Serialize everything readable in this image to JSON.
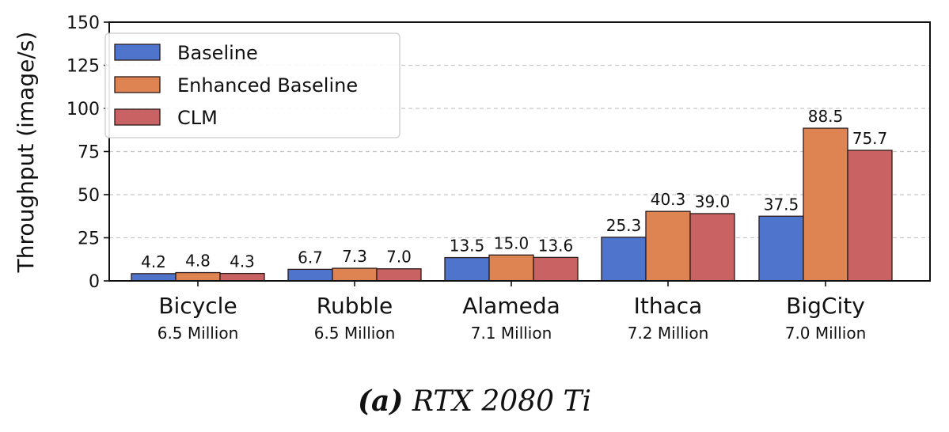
{
  "caption": {
    "prefix": "(a)",
    "text": "RTX 2080 Ti"
  },
  "colors": {
    "Baseline": "#4e75cb",
    "Enhanced Baseline": "#dd8452",
    "CLM": "#c96262",
    "edge": "#2a1a1a",
    "grid": "#c8c8c8"
  },
  "chart_data": {
    "type": "bar",
    "title": "",
    "xlabel": "",
    "ylabel": "Throughput (image/s)",
    "ylim": [
      0,
      150
    ],
    "yticks": [
      0,
      25,
      50,
      75,
      100,
      125,
      150
    ],
    "grid": {
      "y": true,
      "style": "dashed"
    },
    "legend_position": "upper left",
    "categories": [
      "Bicycle",
      "Rubble",
      "Alameda",
      "Ithaca",
      "BigCity"
    ],
    "category_sublabels": [
      "6.5 Million",
      "6.5 Million",
      "7.1 Million",
      "7.2 Million",
      "7.0 Million"
    ],
    "series": [
      {
        "name": "Baseline",
        "values": [
          4.2,
          6.7,
          13.5,
          25.3,
          37.5
        ]
      },
      {
        "name": "Enhanced Baseline",
        "values": [
          4.8,
          7.3,
          15.0,
          40.3,
          88.5
        ]
      },
      {
        "name": "CLM",
        "values": [
          4.3,
          7.0,
          13.6,
          39.0,
          75.7
        ]
      }
    ]
  }
}
